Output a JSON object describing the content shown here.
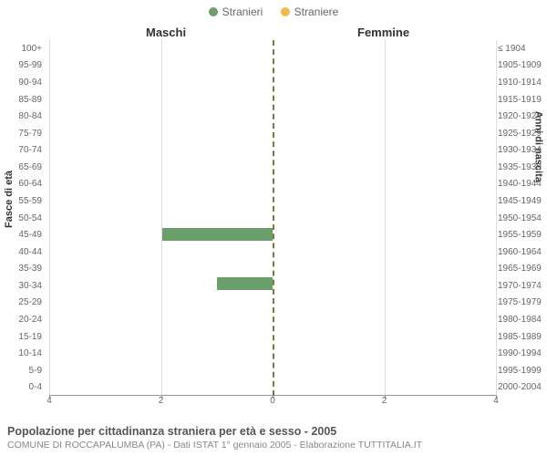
{
  "legend": {
    "male": {
      "label": "Stranieri",
      "color": "#6a9e6a"
    },
    "female": {
      "label": "Straniere",
      "color": "#f2b84b"
    }
  },
  "panel_titles": {
    "left": "Maschi",
    "right": "Femmine"
  },
  "axis_labels": {
    "left": "Fasce di età",
    "right": "Anni di nascita"
  },
  "age_groups": [
    "100+",
    "95-99",
    "90-94",
    "85-89",
    "80-84",
    "75-79",
    "70-74",
    "65-69",
    "60-64",
    "55-59",
    "50-54",
    "45-49",
    "40-44",
    "35-39",
    "30-34",
    "25-29",
    "20-24",
    "15-19",
    "10-14",
    "5-9",
    "0-4"
  ],
  "birth_years": [
    "≤ 1904",
    "1905-1909",
    "1910-1914",
    "1915-1919",
    "1920-1924",
    "1925-1929",
    "1930-1934",
    "1935-1939",
    "1940-1944",
    "1945-1949",
    "1950-1954",
    "1955-1959",
    "1960-1964",
    "1965-1969",
    "1970-1974",
    "1975-1979",
    "1980-1984",
    "1985-1989",
    "1990-1994",
    "1995-1999",
    "2000-2004"
  ],
  "x_axis": {
    "max": 4,
    "ticks": [
      0,
      2,
      4
    ]
  },
  "series": {
    "male_color": "#6a9e6a",
    "female_color": "#f2b84b",
    "male": {
      "45-49": 2,
      "30-34": 1
    },
    "female": {}
  },
  "grid_color": "#dddddd",
  "caption": {
    "title": "Popolazione per cittadinanza straniera per età e sesso - 2005",
    "subtitle": "COMUNE DI ROCCAPALUMBA (PA) - Dati ISTAT 1° gennaio 2005 - Elaborazione TUTTITALIA.IT"
  }
}
